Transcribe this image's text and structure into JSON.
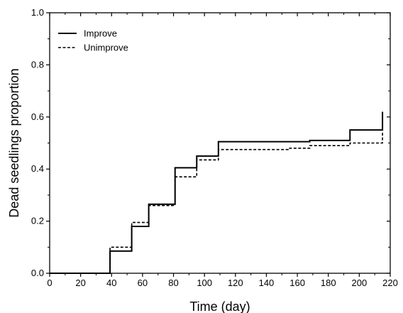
{
  "chart_data": {
    "type": "line",
    "step": true,
    "xlabel": "Time (day)",
    "ylabel": "Dead seedlings proportion",
    "xlim": [
      0,
      220
    ],
    "ylim": [
      0,
      1.0
    ],
    "xticks": [
      0,
      20,
      40,
      60,
      80,
      100,
      120,
      140,
      160,
      180,
      200,
      220
    ],
    "xtick_labels": [
      "0",
      "20",
      "40",
      "60",
      "80",
      "100",
      "120",
      "140",
      "160",
      "180",
      "200",
      "220"
    ],
    "yticks": [
      0,
      0.2,
      0.4,
      0.6,
      0.8,
      1.0
    ],
    "ytick_labels": [
      "0.0",
      "0.2",
      "0.4",
      "0.6",
      "0.8",
      "1.0"
    ],
    "grid": false,
    "legend_position": "top-left",
    "series": [
      {
        "name": "Improve",
        "style": "solid",
        "color": "#000000",
        "x": [
          0,
          39,
          53,
          64,
          81,
          95,
          109,
          154,
          168,
          194,
          215
        ],
        "y": [
          0,
          0.085,
          0.18,
          0.265,
          0.405,
          0.45,
          0.505,
          0.505,
          0.51,
          0.55,
          0.62
        ]
      },
      {
        "name": "Unimprove",
        "style": "dashed",
        "color": "#000000",
        "x": [
          0,
          39,
          53,
          64,
          81,
          95,
          109,
          154,
          168,
          194,
          215
        ],
        "y": [
          0,
          0.1,
          0.195,
          0.26,
          0.37,
          0.435,
          0.475,
          0.48,
          0.49,
          0.5,
          0.54
        ]
      }
    ]
  }
}
